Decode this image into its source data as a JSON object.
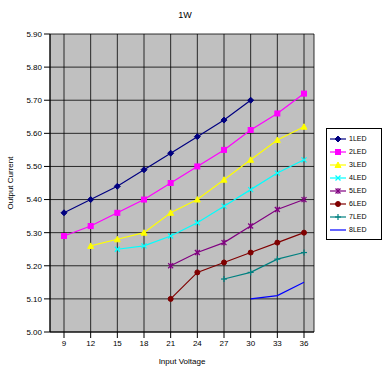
{
  "chart_data": {
    "type": "line",
    "title": "1W",
    "x_label": "Input Voltage",
    "y_label": "Output Current",
    "categories": [
      "9",
      "12",
      "15",
      "18",
      "21",
      "24",
      "27",
      "30",
      "33",
      "36"
    ],
    "ylim": [
      5.0,
      5.9
    ],
    "yticks": [
      {
        "value": 5.0,
        "label": "5.00"
      },
      {
        "value": 5.1,
        "label": "5.10"
      },
      {
        "value": 5.2,
        "label": "5.20"
      },
      {
        "value": 5.3,
        "label": "5.30"
      },
      {
        "value": 5.4,
        "label": "5.40"
      },
      {
        "value": 5.5,
        "label": "5.50"
      },
      {
        "value": 5.6,
        "label": "5.60"
      },
      {
        "value": 5.7,
        "label": "5.70"
      },
      {
        "value": 5.8,
        "label": "5.80"
      },
      {
        "value": 5.9,
        "label": "5.90"
      }
    ],
    "grid": true,
    "legend": "right",
    "series": [
      {
        "name": "1LED",
        "color": "#000080",
        "marker": "diamond",
        "line_style": "solid",
        "values": [
          5.36,
          5.4,
          5.44,
          5.49,
          5.54,
          5.59,
          5.64,
          5.7,
          null,
          null
        ]
      },
      {
        "name": "2LED",
        "color": "#ff00ff",
        "marker": "square",
        "line_style": "solid",
        "values": [
          5.29,
          5.32,
          5.36,
          5.4,
          5.45,
          5.5,
          5.55,
          5.61,
          5.66,
          5.72
        ]
      },
      {
        "name": "3LED",
        "color": "#ffff00",
        "marker": "triangle",
        "line_style": "solid",
        "values": [
          null,
          5.26,
          5.28,
          5.3,
          5.36,
          5.4,
          5.46,
          5.52,
          5.58,
          5.62
        ]
      },
      {
        "name": "4LED",
        "color": "#00ffff",
        "marker": "x",
        "line_style": "solid",
        "values": [
          null,
          null,
          5.25,
          5.26,
          5.29,
          5.33,
          5.38,
          5.43,
          5.48,
          5.52
        ]
      },
      {
        "name": "5LED",
        "color": "#800080",
        "marker": "star",
        "line_style": "solid",
        "values": [
          null,
          null,
          null,
          null,
          5.2,
          5.24,
          5.27,
          5.32,
          5.37,
          5.4
        ]
      },
      {
        "name": "6LED",
        "color": "#800000",
        "marker": "circle",
        "line_style": "solid",
        "values": [
          null,
          null,
          null,
          null,
          5.1,
          5.18,
          5.21,
          5.24,
          5.27,
          5.3
        ]
      },
      {
        "name": "7LED",
        "color": "#008080",
        "marker": "plus",
        "line_style": "solid",
        "values": [
          null,
          null,
          null,
          null,
          null,
          null,
          5.16,
          5.18,
          5.22,
          5.24
        ]
      },
      {
        "name": "8LED",
        "color": "#0000ff",
        "marker": "none",
        "line_style": "solid",
        "values": [
          null,
          null,
          null,
          null,
          null,
          null,
          null,
          5.1,
          5.11,
          5.15
        ]
      }
    ]
  }
}
